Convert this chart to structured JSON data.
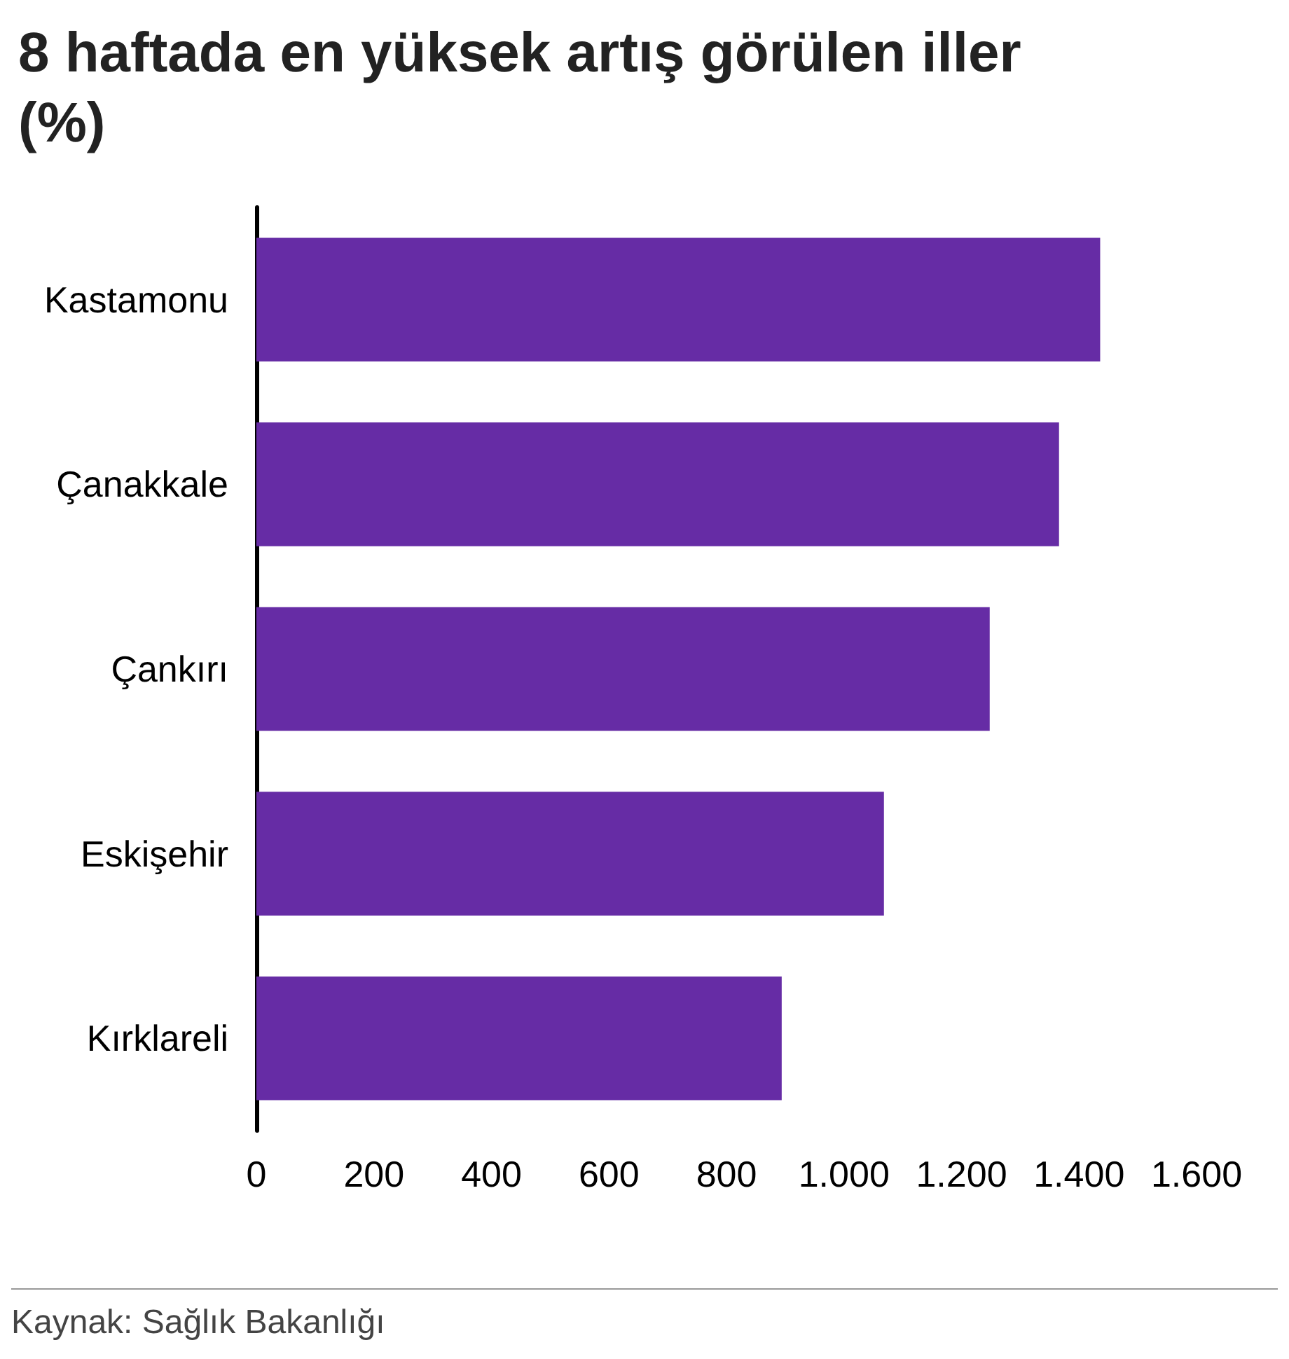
{
  "chart_data": {
    "type": "bar",
    "title": "8 haftada en yüksek artış görülen iller (%)",
    "orientation": "horizontal",
    "categories": [
      "Kastamonu",
      "Çanakkale",
      "Çankırı",
      "Eskişehir",
      "Kırklareli"
    ],
    "values": [
      1436,
      1366,
      1248,
      1068,
      894
    ],
    "color": "#662ca5",
    "xlim": [
      0,
      1600
    ],
    "xticks": [
      0,
      200,
      400,
      600,
      800,
      {
        "value": 1000,
        "label": "1.000"
      },
      {
        "value": 1200,
        "label": "1.200"
      },
      {
        "value": 1400,
        "label": "1.400"
      },
      {
        "value": 1600,
        "label": "1.600"
      }
    ],
    "grid": false,
    "annotations": [
      "Kaynak: Sağlık Bakanlığı"
    ]
  }
}
